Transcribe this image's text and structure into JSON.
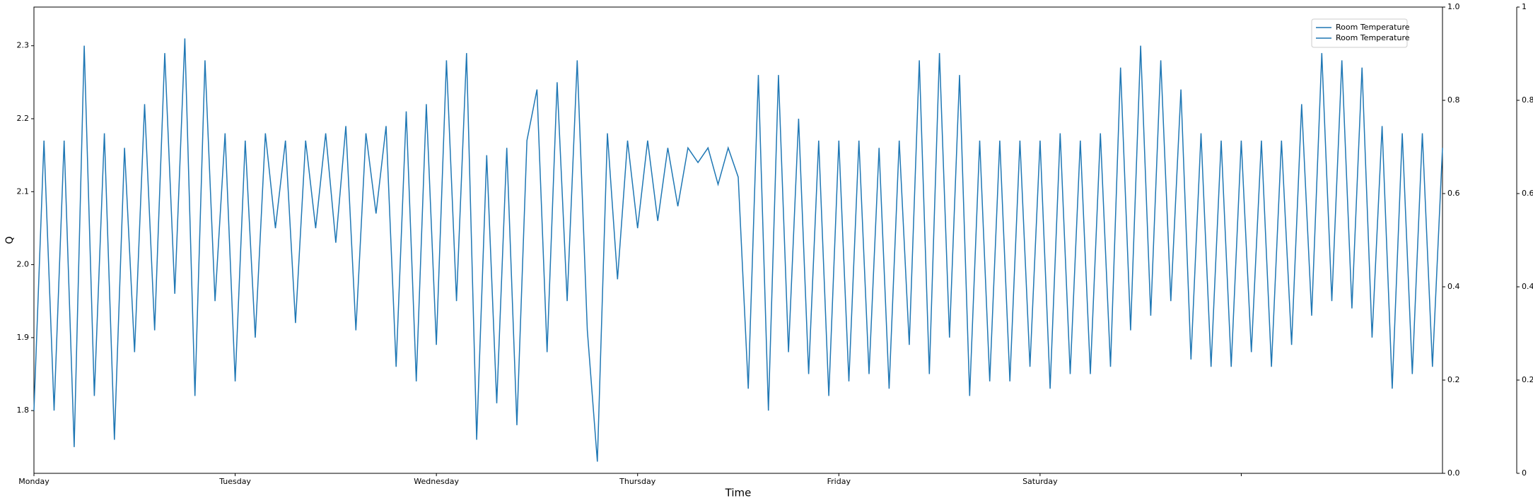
{
  "chart_data": {
    "type": "line",
    "xlabel": "Time",
    "ylabel": "Q",
    "xlim": [
      0,
      7
    ],
    "xticks": [
      {
        "value": 0,
        "label": "Monday"
      },
      {
        "value": 1,
        "label": "Tuesday"
      },
      {
        "value": 2,
        "label": "Wednesday"
      },
      {
        "value": 3,
        "label": "Thursday"
      },
      {
        "value": 4,
        "label": "Friday"
      },
      {
        "value": 5,
        "label": "Saturday"
      },
      {
        "value": 6,
        "label": null
      }
    ],
    "ylim": [
      1.714,
      2.353
    ],
    "yticks": [
      1.8,
      1.9,
      {
        "value": 2.0,
        "label": "2.0"
      },
      2.1,
      2.2,
      2.3
    ],
    "y2lim": [
      0,
      1
    ],
    "y2ticks": [
      {
        "value": 0,
        "label": "0.0"
      },
      0.2,
      0.4,
      0.6,
      0.8,
      {
        "value": 1,
        "label": "1.0"
      }
    ],
    "y3lim": [
      0,
      1
    ],
    "y3ticks": [
      0,
      0.2,
      0.4,
      0.6,
      0.8,
      1
    ],
    "legend": "upper right",
    "x": [
      0,
      0.05,
      0.1,
      0.15,
      0.2,
      0.25,
      0.3,
      0.35,
      0.4,
      0.45,
      0.5,
      0.55,
      0.6,
      0.65,
      0.7,
      0.75,
      0.8,
      0.85,
      0.9,
      0.95,
      1,
      1.05,
      1.1,
      1.15,
      1.2,
      1.25,
      1.3,
      1.35,
      1.4,
      1.45,
      1.5,
      1.55,
      1.6,
      1.65,
      1.7,
      1.75,
      1.8,
      1.85,
      1.9,
      1.95,
      2,
      2.05,
      2.1,
      2.15,
      2.2,
      2.25,
      2.3,
      2.35,
      2.4,
      2.45,
      2.5,
      2.55,
      2.6,
      2.65,
      2.7,
      2.75,
      2.8,
      2.85,
      2.9,
      2.95,
      3,
      3.05,
      3.1,
      3.15,
      3.2,
      3.25,
      3.3,
      3.35,
      3.4,
      3.45,
      3.5,
      3.55,
      3.6,
      3.65,
      3.7,
      3.75,
      3.8,
      3.85,
      3.9,
      3.95,
      4,
      4.05,
      4.1,
      4.15,
      4.2,
      4.25,
      4.3,
      4.35,
      4.4,
      4.45,
      4.5,
      4.55,
      4.6,
      4.65,
      4.7,
      4.75,
      4.8,
      4.85,
      4.9,
      4.95,
      5,
      5.05,
      5.1,
      5.15,
      5.2,
      5.25,
      5.3,
      5.35,
      5.4,
      5.45,
      5.5,
      5.55,
      5.6,
      5.65,
      5.7,
      5.75,
      5.8,
      5.85,
      5.9,
      5.95,
      6,
      6.05,
      6.1,
      6.15,
      6.2,
      6.25,
      6.3,
      6.35,
      6.4,
      6.45,
      6.5,
      6.55,
      6.6,
      6.65,
      6.7,
      6.75,
      6.8,
      6.85,
      6.9,
      6.95,
      7
    ],
    "series": [
      {
        "name": "Room Temperature",
        "color": "#1f77b4",
        "values": [
          1.8,
          2.17,
          1.8,
          2.17,
          1.75,
          2.3,
          1.82,
          2.18,
          1.76,
          2.16,
          1.88,
          2.22,
          1.91,
          2.29,
          1.96,
          2.31,
          1.82,
          2.28,
          1.95,
          2.18,
          1.84,
          2.17,
          1.9,
          2.18,
          2.05,
          2.17,
          1.92,
          2.17,
          2.05,
          2.18,
          2.03,
          2.19,
          1.91,
          2.18,
          2.07,
          2.19,
          1.86,
          2.21,
          1.84,
          2.22,
          1.89,
          2.28,
          1.95,
          2.29,
          1.76,
          2.15,
          1.81,
          2.16,
          1.78,
          2.17,
          2.24,
          1.88,
          2.25,
          1.95,
          2.28,
          1.91,
          1.73,
          2.18,
          1.98,
          2.17,
          2.05,
          2.17,
          2.06,
          2.16,
          2.08,
          2.16,
          2.14,
          2.16,
          2.11,
          2.16,
          2.12,
          1.83,
          2.26,
          1.8,
          2.26,
          1.88,
          2.2,
          1.85,
          2.17,
          1.82,
          2.17,
          1.84,
          2.17,
          1.85,
          2.16,
          1.83,
          2.17,
          1.89,
          2.28,
          1.85,
          2.29,
          1.9,
          2.26,
          1.82,
          2.17,
          1.84,
          2.17,
          1.84,
          2.17,
          1.86,
          2.17,
          1.83,
          2.18,
          1.85,
          2.17,
          1.85,
          2.18,
          1.86,
          2.27,
          1.91,
          2.3,
          1.93,
          2.28,
          1.95,
          2.24,
          1.87,
          2.18,
          1.86,
          2.17,
          1.86,
          2.17,
          1.88,
          2.17,
          1.86,
          2.17,
          1.89,
          2.22,
          1.93,
          2.29,
          1.95,
          2.28,
          1.94,
          2.27,
          1.9,
          2.19,
          1.83,
          2.18,
          1.85,
          2.18,
          1.86,
          2.16
        ]
      },
      {
        "name": "Room Temperature",
        "color": "#1f77b4",
        "axis": "y2",
        "values": [
          null,
          null,
          null,
          null,
          null,
          null,
          null,
          null,
          null,
          null,
          null,
          null,
          null,
          null,
          null,
          null,
          null,
          null,
          null,
          null,
          null,
          null,
          null,
          null,
          null,
          null,
          null,
          null,
          null,
          null,
          null,
          null,
          null,
          null,
          null,
          null,
          null,
          null,
          null,
          null,
          null,
          null,
          null,
          null,
          null,
          null,
          null,
          null,
          null,
          null,
          null,
          null,
          null,
          null,
          null,
          null,
          null,
          null,
          null,
          null,
          null,
          null,
          null,
          null,
          null,
          null,
          null,
          null,
          null,
          null,
          null,
          null,
          null,
          null,
          null,
          null,
          null,
          null,
          null,
          null,
          null,
          null,
          null,
          null,
          null,
          null,
          null,
          null,
          null,
          null,
          null,
          null,
          null,
          null,
          null,
          null,
          null,
          null,
          null,
          null,
          null,
          null,
          null,
          null,
          null,
          null,
          null,
          null,
          null,
          null,
          null,
          null,
          null,
          null,
          null,
          null,
          null,
          null,
          null,
          null,
          null,
          null,
          null,
          null,
          null,
          null,
          null,
          null,
          null,
          null,
          null,
          null,
          null,
          null,
          null,
          null,
          null,
          null,
          null,
          null,
          null
        ]
      }
    ]
  }
}
